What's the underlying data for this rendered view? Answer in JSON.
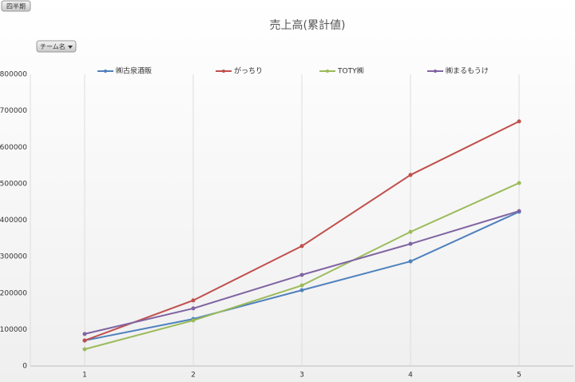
{
  "chart_data": {
    "type": "line",
    "title": "売上高(累計値)",
    "field_buttons": [
      "四半期",
      "チーム名"
    ],
    "categories": [
      "1",
      "2",
      "3",
      "4",
      "5"
    ],
    "series": [
      {
        "name": "㈱古泉酒販",
        "color": "#4f81bd",
        "values": [
          70000,
          129000,
          208000,
          287000,
          423000
        ]
      },
      {
        "name": "がっちり",
        "color": "#c0504d",
        "values": [
          70000,
          180000,
          329000,
          524000,
          671000
        ]
      },
      {
        "name": "TOTY㈱",
        "color": "#9bbb59",
        "values": [
          46000,
          125000,
          221000,
          368000,
          502000
        ]
      },
      {
        "name": "㈱まるもうけ",
        "color": "#8064a2",
        "values": [
          88000,
          158000,
          250000,
          335000,
          425000
        ]
      }
    ],
    "ylim": [
      0,
      800000
    ],
    "yticks": [
      0,
      100000,
      200000,
      300000,
      400000,
      500000,
      600000,
      700000,
      800000
    ],
    "grid": false,
    "x_grid": true,
    "legend": "top"
  }
}
